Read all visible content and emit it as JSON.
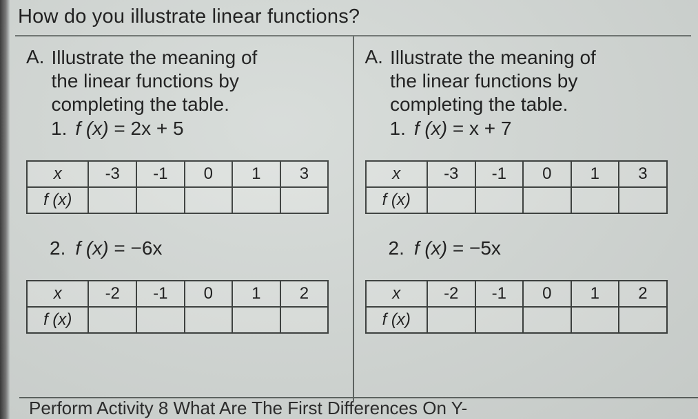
{
  "question": "How do you illustrate linear functions?",
  "left": {
    "letter": "A.",
    "prompt_line1": "Illustrate the meaning of",
    "prompt_line2": "the linear functions by",
    "prompt_line3": "completing the table.",
    "item1_num": "1.",
    "item1_formula_lhs": "f (x)",
    "item1_formula_eq": "=",
    "item1_formula_rhs": "2x + 5",
    "table1": {
      "row_x": "x",
      "row_fx": "f (x)",
      "c1": "-3",
      "c2": "-1",
      "c3": "0",
      "c4": "1",
      "c5": "3"
    },
    "item2_num": "2.",
    "item2_formula_lhs": "f (x)",
    "item2_formula_eq": "=",
    "item2_formula_rhs": "−6x",
    "table2": {
      "row_x": "x",
      "row_fx": "f (x)",
      "c1": "-2",
      "c2": "-1",
      "c3": "0",
      "c4": "1",
      "c5": "2"
    }
  },
  "right": {
    "letter": "A.",
    "prompt_line1": "Illustrate the meaning of",
    "prompt_line2": "the linear functions by",
    "prompt_line3": "completing the table.",
    "item1_num": "1.",
    "item1_formula_lhs": "f (x)",
    "item1_formula_eq": "=",
    "item1_formula_rhs": "x + 7",
    "table1": {
      "row_x": "x",
      "row_fx": "f (x)",
      "c1": "-3",
      "c2": "-1",
      "c3": "0",
      "c4": "1",
      "c5": "3"
    },
    "item2_num": "2.",
    "item2_formula_lhs": "f (x)",
    "item2_formula_eq": "=",
    "item2_formula_rhs": "−5x",
    "table2": {
      "row_x": "x",
      "row_fx": "f (x)",
      "c1": "-2",
      "c2": "-1",
      "c3": "0",
      "c4": "1",
      "c5": "2"
    }
  },
  "footer": "Perform Activity 8 What Are The First Differences On Y-",
  "style": {
    "page_bg": "#d6dbd8",
    "body_bg": "#c8cecd",
    "text_color": "#1a1a1a",
    "rule_color": "#5e6461",
    "cell_border": "#3a3e3c",
    "cell_bg": "#dfe3e0",
    "question_fontsize_pt": 22,
    "prompt_fontsize_pt": 21,
    "table_fontsize_pt": 18,
    "font_family": "Arial"
  }
}
